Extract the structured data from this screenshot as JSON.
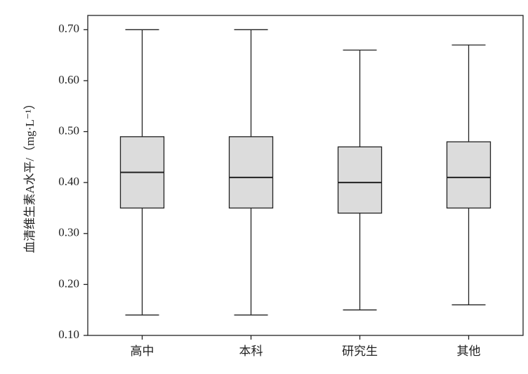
{
  "chart_data": {
    "type": "box",
    "ylabel": "血清维生素A水平/（mg·L⁻¹）",
    "categories": [
      "高中",
      "本科",
      "研究生",
      "其他"
    ],
    "boxes": [
      {
        "min": 0.14,
        "q1": 0.35,
        "median": 0.42,
        "q3": 0.49,
        "max": 0.7
      },
      {
        "min": 0.14,
        "q1": 0.35,
        "median": 0.41,
        "q3": 0.49,
        "max": 0.7
      },
      {
        "min": 0.15,
        "q1": 0.34,
        "median": 0.4,
        "q3": 0.47,
        "max": 0.66
      },
      {
        "min": 0.16,
        "q1": 0.35,
        "median": 0.41,
        "q3": 0.48,
        "max": 0.67
      }
    ],
    "color": "#dcdcdc",
    "ylim": [
      0.1,
      0.728
    ],
    "yticks": [
      {
        "value": 0.1,
        "label": "0.10"
      },
      {
        "value": 0.2,
        "label": "0.20"
      },
      {
        "value": 0.3,
        "label": "0.30"
      },
      {
        "value": 0.4,
        "label": "0.40"
      },
      {
        "value": 0.5,
        "label": "0.50"
      },
      {
        "value": 0.6,
        "label": "0.60"
      },
      {
        "value": 0.7,
        "label": "0.70"
      }
    ]
  }
}
